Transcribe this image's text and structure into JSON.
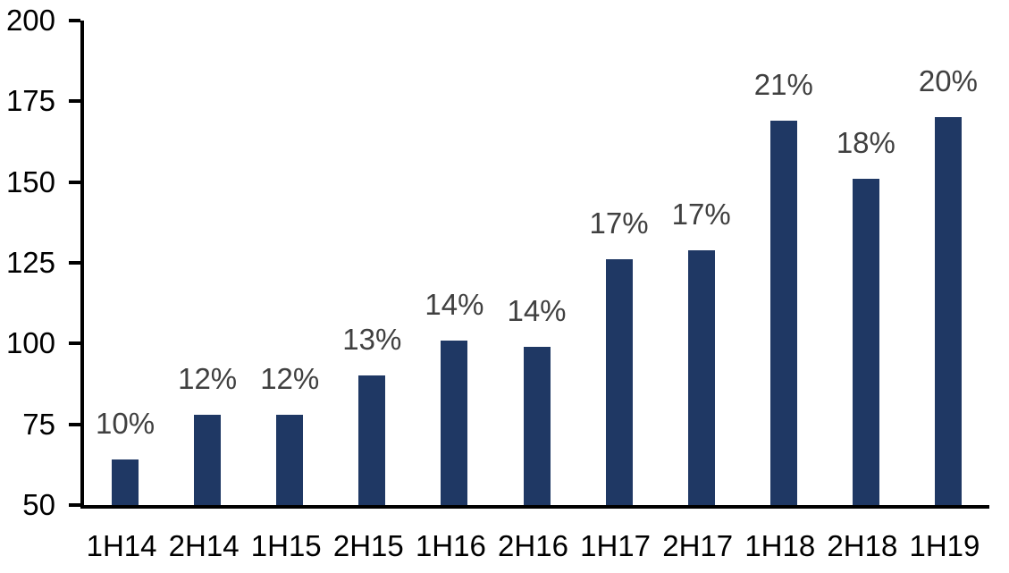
{
  "chart_data": {
    "type": "bar",
    "title": "",
    "xlabel": "",
    "ylabel": "",
    "categories": [
      "1H14",
      "2H14",
      "1H15",
      "2H15",
      "1H16",
      "2H16",
      "1H17",
      "2H17",
      "1H18",
      "2H18",
      "1H19"
    ],
    "values": [
      64,
      78,
      78,
      90,
      101,
      99,
      126,
      129,
      169,
      151,
      170
    ],
    "bar_labels": [
      "10%",
      "12%",
      "12%",
      "13%",
      "14%",
      "14%",
      "17%",
      "17%",
      "21%",
      "18%",
      "20%"
    ],
    "y_ticks": [
      50,
      75,
      100,
      125,
      150,
      175,
      200
    ],
    "ylim": [
      50,
      200
    ],
    "grid": false,
    "legend": false,
    "colors": {
      "bar": "#1f3864",
      "data_label": "#404040",
      "axis": "#000000",
      "background": "#ffffff"
    }
  }
}
